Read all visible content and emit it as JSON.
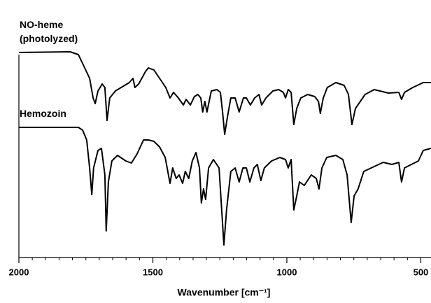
{
  "chart_data": {
    "type": "line",
    "xlabel": "Wavenumber [cm⁻¹]",
    "xlim": [
      2000,
      462
    ],
    "xticks": [
      2000,
      1500,
      1000,
      500
    ],
    "xminorticks": [
      1950,
      1900,
      1850,
      1800,
      1750,
      1700,
      1650,
      1600,
      1550,
      1450,
      1400,
      1350,
      1300,
      1250,
      1200,
      1150,
      1100,
      1050,
      950,
      900,
      850,
      800,
      750,
      700,
      650,
      600,
      550
    ],
    "ylim": [
      0,
      320
    ],
    "series": [
      {
        "name": "NO-heme (photolyzed)",
        "color": "#000000",
        "x": [
          2000,
          1809,
          1778,
          1757,
          1736,
          1723,
          1715,
          1705,
          1689,
          1679,
          1671,
          1661,
          1640,
          1614,
          1588,
          1574,
          1567,
          1553,
          1527,
          1517,
          1496,
          1475,
          1452,
          1436,
          1423,
          1405,
          1386,
          1376,
          1360,
          1345,
          1332,
          1321,
          1314,
          1306,
          1298,
          1282,
          1261,
          1248,
          1240,
          1232,
          1222,
          1209,
          1193,
          1178,
          1162,
          1151,
          1136,
          1120,
          1104,
          1094,
          1078,
          1052,
          1031,
          1013,
          1005,
          995,
          984,
          974,
          963,
          948,
          922,
          896,
          882,
          875,
          864,
          849,
          817,
          786,
          770,
          757,
          744,
          726,
          708,
          674,
          621,
          582,
          572,
          561,
          530,
          491,
          462
        ],
        "values": [
          293,
          294,
          290,
          273,
          256,
          228,
          220,
          238,
          248,
          243,
          196,
          228,
          238,
          244,
          250,
          256,
          243,
          248,
          266,
          271,
          268,
          256,
          243,
          228,
          236,
          228,
          218,
          226,
          218,
          230,
          233,
          228,
          208,
          223,
          208,
          238,
          240,
          236,
          208,
          176,
          200,
          228,
          228,
          208,
          228,
          228,
          218,
          228,
          233,
          218,
          228,
          238,
          240,
          236,
          228,
          240,
          236,
          190,
          213,
          228,
          233,
          230,
          223,
          206,
          228,
          243,
          250,
          246,
          233,
          190,
          213,
          223,
          233,
          240,
          235,
          236,
          226,
          236,
          243,
          250,
          250
        ]
      },
      {
        "name": "Hemozoin",
        "color": "#000000",
        "x": [
          2000,
          1778,
          1762,
          1747,
          1736,
          1728,
          1721,
          1705,
          1692,
          1679,
          1674,
          1666,
          1653,
          1632,
          1601,
          1580,
          1559,
          1535,
          1517,
          1496,
          1475,
          1454,
          1436,
          1426,
          1413,
          1402,
          1389,
          1379,
          1366,
          1353,
          1339,
          1326,
          1319,
          1311,
          1303,
          1292,
          1274,
          1253,
          1240,
          1235,
          1225,
          1209,
          1193,
          1178,
          1164,
          1151,
          1138,
          1123,
          1110,
          1097,
          1084,
          1057,
          1026,
          1005,
          995,
          984,
          974,
          963,
          953,
          935,
          909,
          890,
          880,
          869,
          851,
          817,
          791,
          775,
          760,
          749,
          734,
          713,
          674,
          640,
          608,
          582,
          572,
          561,
          535,
          509,
          491,
          462
        ],
        "values": [
          186,
          186,
          182,
          168,
          128,
          90,
          128,
          153,
          156,
          118,
          38,
          108,
          138,
          146,
          138,
          135,
          148,
          168,
          168,
          166,
          158,
          143,
          106,
          128,
          113,
          118,
          106,
          123,
          113,
          138,
          150,
          128,
          78,
          98,
          83,
          128,
          140,
          128,
          48,
          18,
          68,
          123,
          128,
          108,
          128,
          128,
          108,
          128,
          133,
          110,
          128,
          138,
          143,
          140,
          128,
          140,
          68,
          88,
          108,
          103,
          118,
          113,
          98,
          128,
          143,
          146,
          140,
          118,
          50,
          88,
          98,
          123,
          130,
          136,
          133,
          136,
          108,
          128,
          133,
          138,
          153,
          156
        ]
      }
    ]
  }
}
